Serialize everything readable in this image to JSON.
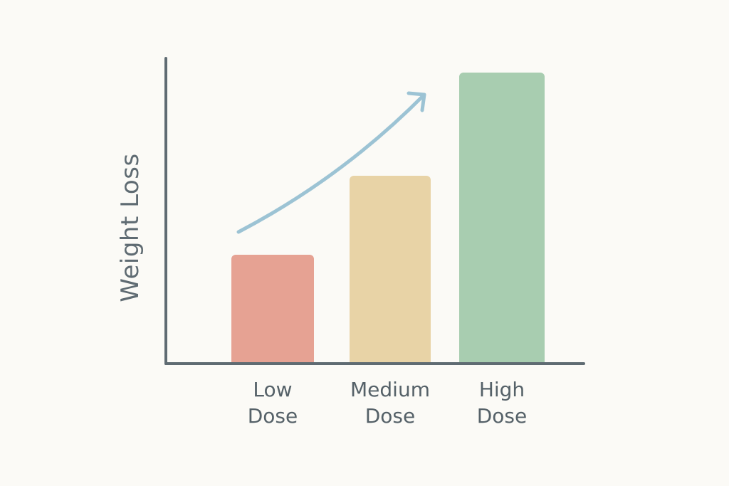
{
  "chart_data": {
    "type": "bar",
    "title": "",
    "xlabel": "",
    "ylabel": "Weight Loss",
    "categories": [
      "Low Dose",
      "Medium Dose",
      "High Dose"
    ],
    "category_lines": [
      [
        "Low",
        "Dose"
      ],
      [
        "Medium",
        "Dose"
      ],
      [
        "High",
        "Dose"
      ]
    ],
    "values": [
      151,
      262,
      407
    ],
    "value_units": "relative (no scale shown)",
    "ylim": [
      0,
      430
    ],
    "colors": [
      "#e6a293",
      "#e8d3a6",
      "#a8cdb0"
    ],
    "grid": false,
    "legend": null,
    "annotations": [
      {
        "type": "trend-arrow",
        "direction": "up-right",
        "color": "#9cc3d4"
      }
    ]
  },
  "style": {
    "background": "#fbfaf6",
    "axis_color": "#5f6b72",
    "text_color": "#556168"
  }
}
